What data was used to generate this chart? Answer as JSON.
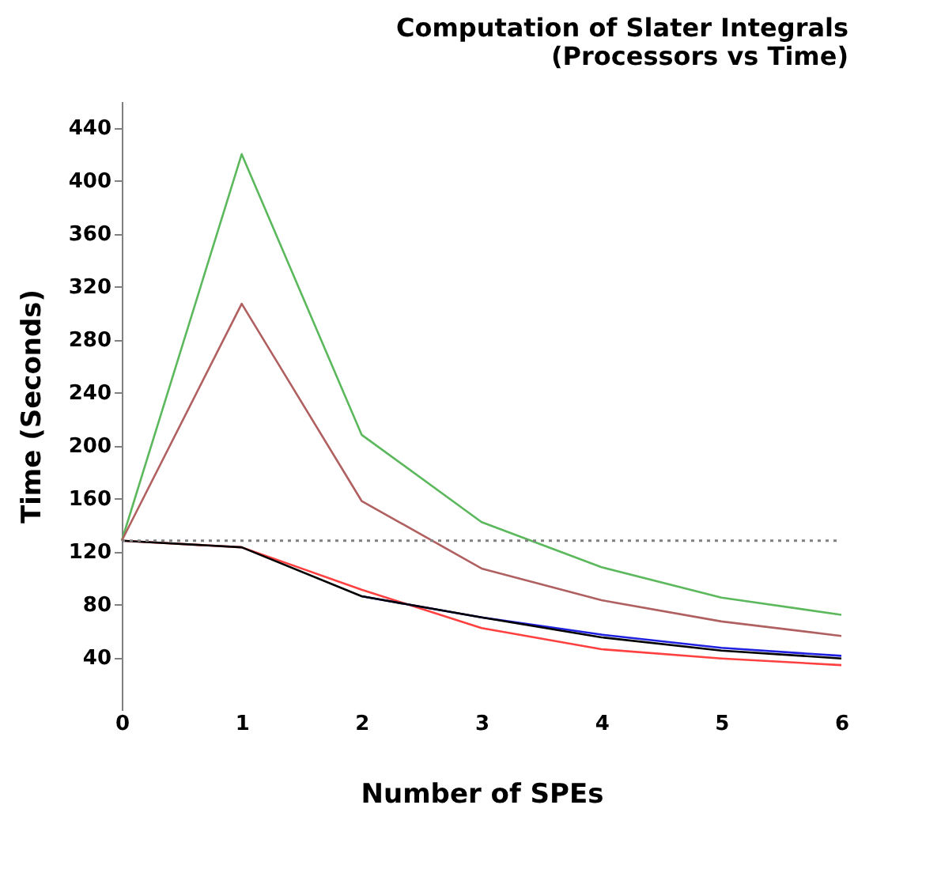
{
  "chart_data": {
    "type": "line",
    "title": [
      "Computation of Slater Integrals",
      "(Processors vs Time)"
    ],
    "xlabel": "Number of SPEs",
    "ylabel": "Time (Seconds)",
    "x": [
      0,
      1,
      2,
      3,
      4,
      5,
      6
    ],
    "series": [
      {
        "color": "#5cb85c",
        "values": [
          128,
          420,
          208,
          142,
          108,
          85,
          72
        ]
      },
      {
        "color": "#b06060",
        "values": [
          128,
          307,
          158,
          107,
          83,
          67,
          56
        ]
      },
      {
        "color": "#ff4040",
        "values": [
          128,
          123,
          91,
          62,
          46,
          39,
          34
        ]
      },
      {
        "color": "#2020e0",
        "values": [
          null,
          null,
          86,
          70,
          57,
          47,
          41
        ]
      },
      {
        "color": "#000000",
        "values": [
          128,
          123,
          86,
          70,
          55,
          45,
          39
        ]
      }
    ],
    "ref_lines": [
      {
        "axis": "y",
        "value": 128,
        "color": "#808080",
        "line_style": "dotted"
      }
    ],
    "xlim": [
      0,
      6
    ],
    "xticks": [
      0,
      1,
      2,
      3,
      4,
      5,
      6
    ],
    "ylim": [
      0,
      460
    ],
    "yticks": [
      40,
      80,
      120,
      160,
      200,
      240,
      280,
      320,
      360,
      400,
      440
    ],
    "grid": false,
    "legend": false,
    "marker": "none",
    "line_style": "solid"
  }
}
